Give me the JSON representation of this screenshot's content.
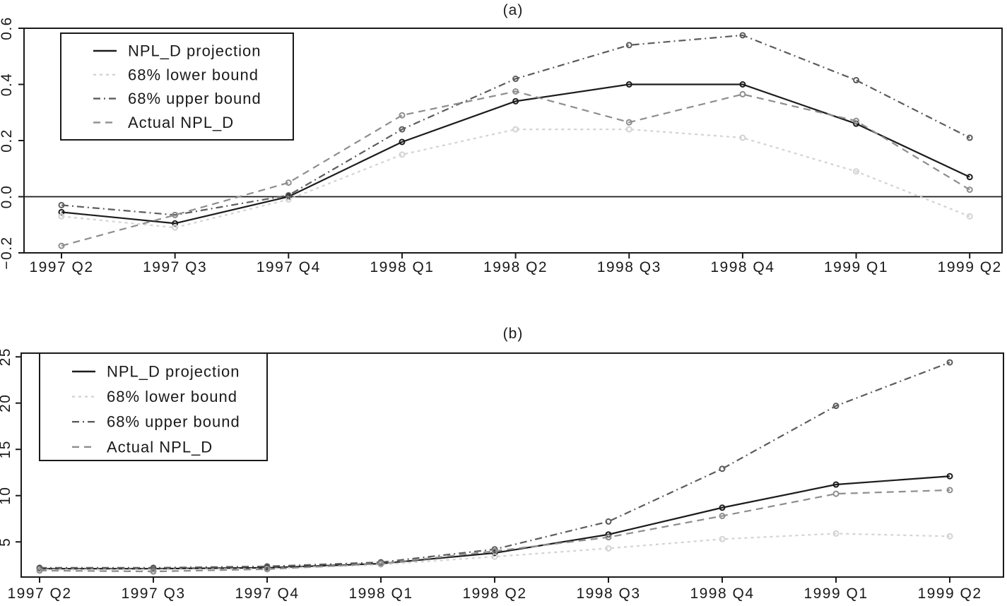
{
  "figure": {
    "background": "#ffffff",
    "ink_color": "#1a1a1a"
  },
  "chart_data": [
    {
      "id": "a",
      "type": "line",
      "title": "(a)",
      "xlabel": "",
      "ylabel": "",
      "categories": [
        "1997 Q2",
        "1997 Q3",
        "1997 Q4",
        "1998 Q1",
        "1998 Q2",
        "1998 Q3",
        "1998 Q4",
        "1999 Q1",
        "1999 Q2"
      ],
      "ylim": [
        -0.2,
        0.6
      ],
      "yticks": [
        -0.2,
        0.0,
        0.2,
        0.4,
        0.6
      ],
      "ytick_labels": [
        "−0.2",
        "0.0",
        "0.2",
        "0.4",
        "0.6"
      ],
      "zero_line": true,
      "grid": false,
      "legend_position": "top-left",
      "series": [
        {
          "name": "NPL_D projection",
          "color": "#1c1c1c",
          "style": "solid",
          "values": [
            -0.055,
            -0.095,
            0.0,
            0.195,
            0.34,
            0.4,
            0.4,
            0.26,
            0.07
          ]
        },
        {
          "name": "68% lower bound",
          "color": "#d3d3d3",
          "style": "short-dash",
          "values": [
            -0.07,
            -0.11,
            -0.01,
            0.15,
            0.24,
            0.24,
            0.21,
            0.09,
            -0.07
          ]
        },
        {
          "name": "68% upper bound",
          "color": "#5c5c5c",
          "style": "dash-dot",
          "values": [
            -0.03,
            -0.065,
            0.005,
            0.24,
            0.42,
            0.54,
            0.575,
            0.415,
            0.21
          ]
        },
        {
          "name": "Actual NPL_D",
          "color": "#8e8e8e",
          "style": "long-dash",
          "values": [
            -0.175,
            -0.065,
            0.05,
            0.29,
            0.375,
            0.265,
            0.365,
            0.27,
            0.025
          ]
        }
      ]
    },
    {
      "id": "b",
      "type": "line",
      "title": "(b)",
      "xlabel": "",
      "ylabel": "",
      "categories": [
        "1997 Q2",
        "1997 Q3",
        "1997 Q4",
        "1998 Q1",
        "1998 Q2",
        "1998 Q3",
        "1998 Q4",
        "1999 Q1",
        "1999 Q2"
      ],
      "ylim": [
        1.2,
        25.4
      ],
      "yticks": [
        5,
        10,
        15,
        20,
        25
      ],
      "ytick_labels": [
        "5",
        "10",
        "15",
        "20",
        "25"
      ],
      "zero_line": false,
      "grid": false,
      "legend_position": "top-left",
      "series": [
        {
          "name": "NPL_D projection",
          "color": "#1c1c1c",
          "style": "solid",
          "values": [
            2.1,
            2.1,
            2.2,
            2.65,
            3.8,
            5.8,
            8.7,
            11.2,
            12.1
          ]
        },
        {
          "name": "68% lower bound",
          "color": "#d3d3d3",
          "style": "short-dash",
          "values": [
            2.0,
            2.0,
            2.1,
            2.55,
            3.4,
            4.3,
            5.3,
            5.9,
            5.6
          ]
        },
        {
          "name": "68% upper bound",
          "color": "#5c5c5c",
          "style": "dash-dot",
          "values": [
            2.2,
            2.2,
            2.35,
            2.8,
            4.2,
            7.2,
            12.9,
            19.7,
            24.4
          ]
        },
        {
          "name": "Actual NPL_D",
          "color": "#8e8e8e",
          "style": "long-dash",
          "values": [
            1.9,
            1.8,
            2.05,
            2.65,
            4.0,
            5.5,
            7.8,
            10.2,
            10.6
          ]
        }
      ]
    }
  ]
}
